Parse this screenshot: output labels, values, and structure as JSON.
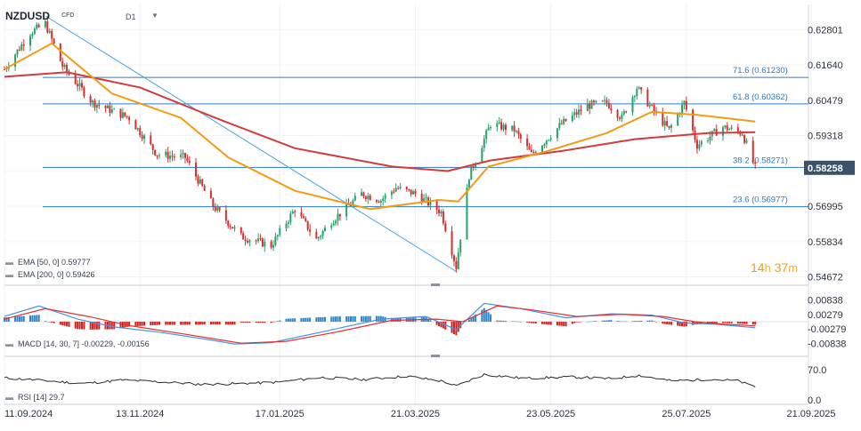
{
  "header": {
    "symbol": "NZDUSD",
    "instrument_type": "CFD",
    "timeframe": "D1"
  },
  "countdown": {
    "hours": "14",
    "h_unit": "h",
    "minutes": "37",
    "m_unit": "m"
  },
  "colors": {
    "up": "#26a269",
    "down": "#d62f2f",
    "ema50": "#f39c12",
    "ema200": "#d23b3b",
    "fib": "#2b7cc7",
    "trend": "#4ea3e6",
    "macd_line": "#4a90e2",
    "signal_line": "#e03030",
    "hist_pos": "#2f86c9",
    "hist_neg": "#cc2222",
    "price_tag": "#3b5268"
  },
  "price_axis": {
    "ticks": [
      "0.62801",
      "0.61640",
      "0.60479",
      "0.59318",
      "0.58157",
      "0.56995",
      "0.55834",
      "0.54672"
    ],
    "last_price": "0.58258"
  },
  "macd_axis": {
    "ticks": [
      "0.00838",
      "0.00279",
      "-0.00279",
      "-0.00838"
    ]
  },
  "rsi_axis": {
    "ticks": [
      "70.0",
      "0.0"
    ]
  },
  "time_axis": {
    "ticks": [
      "11.09.2024",
      "13.11.2024",
      "17.01.2025",
      "21.03.2025",
      "23.05.2025",
      "25.07.2025",
      "21.09.2025"
    ]
  },
  "legend": {
    "ema50": "EMA [50, 0] 0.59777",
    "ema200": "EMA [200, 0] 0.59426",
    "macd": "MACD [14, 30, 7] -0.00229, -0.00156",
    "rsi": "RSI [14] 29.7"
  },
  "chart_data": {
    "type": "candlestick",
    "panels": [
      "price",
      "macd",
      "rsi"
    ],
    "ylim_price": [
      0.5457,
      0.6325
    ],
    "ylim_macd": [
      -0.0095,
      0.0095
    ],
    "ylim_rsi": [
      0,
      100
    ],
    "fib_levels": [
      {
        "label": "71.6 (0.61230)",
        "value": 0.6123
      },
      {
        "label": "61.8 (0.60362)",
        "value": 0.60362
      },
      {
        "label": "38.2 (0.58271)",
        "value": 0.58271
      },
      {
        "label": "23.6 (0.56977)",
        "value": 0.56977
      }
    ],
    "trendline": [
      {
        "date": "2024-09-30",
        "price": 0.6325
      },
      {
        "date": "2025-04-09",
        "price": 0.5485
      }
    ],
    "price_path": [
      [
        "2024-09-11",
        0.615
      ],
      [
        "2024-09-23",
        0.627
      ],
      [
        "2024-09-30",
        0.63
      ],
      [
        "2024-10-08",
        0.616
      ],
      [
        "2024-10-22",
        0.604
      ],
      [
        "2024-11-08",
        0.599
      ],
      [
        "2024-11-21",
        0.587
      ],
      [
        "2024-12-04",
        0.586
      ],
      [
        "2024-12-17",
        0.57
      ],
      [
        "2024-12-30",
        0.56
      ],
      [
        "2025-01-13",
        0.557
      ],
      [
        "2025-01-24",
        0.569
      ],
      [
        "2025-02-03",
        0.559
      ],
      [
        "2025-02-10",
        0.565
      ],
      [
        "2025-02-24",
        0.574
      ],
      [
        "2025-03-05",
        0.572
      ],
      [
        "2025-03-12",
        0.576
      ],
      [
        "2025-03-21",
        0.574
      ],
      [
        "2025-04-02",
        0.568
      ],
      [
        "2025-04-09",
        0.55
      ],
      [
        "2025-04-15",
        0.58
      ],
      [
        "2025-04-25",
        0.597
      ],
      [
        "2025-05-06",
        0.595
      ],
      [
        "2025-05-14",
        0.587
      ],
      [
        "2025-05-28",
        0.597
      ],
      [
        "2025-06-09",
        0.603
      ],
      [
        "2025-06-18",
        0.604
      ],
      [
        "2025-06-25",
        0.599
      ],
      [
        "2025-07-02",
        0.609
      ],
      [
        "2025-07-09",
        0.602
      ],
      [
        "2025-07-17",
        0.595
      ],
      [
        "2025-07-24",
        0.604
      ],
      [
        "2025-07-30",
        0.59
      ],
      [
        "2025-08-11",
        0.596
      ],
      [
        "2025-08-20",
        0.594
      ],
      [
        "2025-08-26",
        0.5826
      ]
    ],
    "ema50_path": [
      [
        "2024-09-11",
        0.615
      ],
      [
        "2024-10-03",
        0.6235
      ],
      [
        "2024-10-31",
        0.607
      ],
      [
        "2024-12-02",
        0.599
      ],
      [
        "2024-12-24",
        0.586
      ],
      [
        "2025-01-24",
        0.575
      ],
      [
        "2025-02-28",
        0.569
      ],
      [
        "2025-04-01",
        0.572
      ],
      [
        "2025-04-10",
        0.5715
      ],
      [
        "2025-04-24",
        0.583
      ],
      [
        "2025-05-21",
        0.588
      ],
      [
        "2025-06-18",
        0.594
      ],
      [
        "2025-07-09",
        0.601
      ],
      [
        "2025-07-30",
        0.6
      ],
      [
        "2025-08-26",
        0.5978
      ]
    ],
    "ema200_path": [
      [
        "2024-09-11",
        0.6125
      ],
      [
        "2024-10-10",
        0.614
      ],
      [
        "2024-11-13",
        0.609
      ],
      [
        "2024-12-18",
        0.599
      ],
      [
        "2025-01-24",
        0.589
      ],
      [
        "2025-03-10",
        0.583
      ],
      [
        "2025-04-05",
        0.5815
      ],
      [
        "2025-04-25",
        0.585
      ],
      [
        "2025-05-27",
        0.588
      ],
      [
        "2025-07-01",
        0.592
      ],
      [
        "2025-08-04",
        0.594
      ],
      [
        "2025-08-26",
        0.5943
      ]
    ],
    "macd_path": [
      [
        "2024-09-11",
        0.002
      ],
      [
        "2024-09-27",
        0.006
      ],
      [
        "2024-10-15",
        0.001
      ],
      [
        "2024-11-01",
        -0.002
      ],
      [
        "2024-11-22",
        -0.004
      ],
      [
        "2024-12-16",
        -0.007
      ],
      [
        "2024-12-27",
        -0.0085
      ],
      [
        "2025-01-13",
        -0.008
      ],
      [
        "2025-02-05",
        -0.004
      ],
      [
        "2025-03-05",
        0.001
      ],
      [
        "2025-03-26",
        0.002
      ],
      [
        "2025-04-09",
        -0.003
      ],
      [
        "2025-04-22",
        0.007
      ],
      [
        "2025-05-09",
        0.005
      ],
      [
        "2025-05-30",
        0.0015
      ],
      [
        "2025-06-20",
        0.003
      ],
      [
        "2025-07-09",
        0.0025
      ],
      [
        "2025-07-24",
        -0.0005
      ],
      [
        "2025-08-08",
        -0.001
      ],
      [
        "2025-08-26",
        -0.0023
      ]
    ],
    "signal_path": [
      [
        "2024-09-11",
        0.001
      ],
      [
        "2024-09-30",
        0.005
      ],
      [
        "2024-10-20",
        0.002
      ],
      [
        "2024-11-08",
        -0.0015
      ],
      [
        "2024-12-02",
        -0.0045
      ],
      [
        "2024-12-30",
        -0.0082
      ],
      [
        "2025-01-20",
        -0.0075
      ],
      [
        "2025-02-12",
        -0.004
      ],
      [
        "2025-03-10",
        0.0005
      ],
      [
        "2025-03-31",
        0.001
      ],
      [
        "2025-04-12",
        0.0
      ],
      [
        "2025-04-28",
        0.006
      ],
      [
        "2025-05-14",
        0.0045
      ],
      [
        "2025-06-04",
        0.002
      ],
      [
        "2025-06-25",
        0.0028
      ],
      [
        "2025-07-14",
        0.002
      ],
      [
        "2025-07-29",
        0.0
      ],
      [
        "2025-08-12",
        -0.001
      ],
      [
        "2025-08-26",
        -0.0016
      ]
    ],
    "rsi_path": [
      [
        "2024-09-11",
        51
      ],
      [
        "2024-09-20",
        48
      ],
      [
        "2024-10-01",
        44
      ],
      [
        "2024-10-18",
        38
      ],
      [
        "2024-11-05",
        46
      ],
      [
        "2024-11-25",
        41
      ],
      [
        "2024-12-12",
        36
      ],
      [
        "2024-12-31",
        38
      ],
      [
        "2025-01-16",
        41
      ],
      [
        "2025-02-05",
        52
      ],
      [
        "2025-02-25",
        47
      ],
      [
        "2025-03-17",
        55
      ],
      [
        "2025-04-03",
        43
      ],
      [
        "2025-04-09",
        32
      ],
      [
        "2025-04-22",
        59
      ],
      [
        "2025-05-10",
        50
      ],
      [
        "2025-06-02",
        53
      ],
      [
        "2025-06-20",
        49
      ],
      [
        "2025-07-03",
        57
      ],
      [
        "2025-07-18",
        44
      ],
      [
        "2025-08-05",
        48
      ],
      [
        "2025-08-18",
        44
      ],
      [
        "2025-08-26",
        29.7
      ]
    ]
  }
}
